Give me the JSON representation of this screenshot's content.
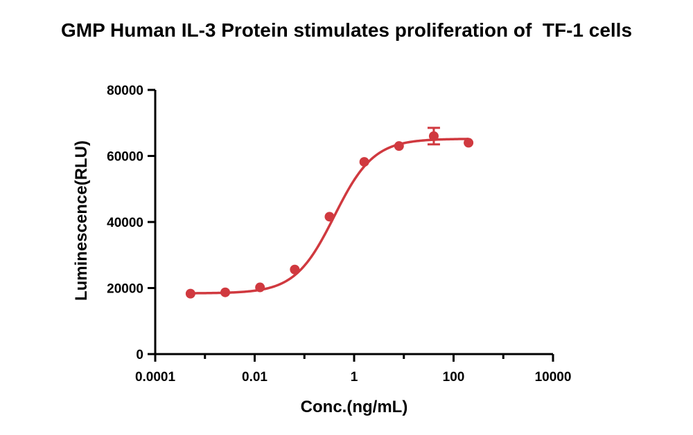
{
  "chart_data": {
    "type": "scatter",
    "title": "GMP Human IL-3 Protein stimulates proliferation of  TF-1 cells",
    "xlabel": "Conc.(ng/mL)",
    "ylabel": "Luminescence(RLU)",
    "x_scale": "log",
    "xlim": [
      0.0001,
      10000
    ],
    "ylim": [
      0,
      80000
    ],
    "x_ticks": [
      {
        "value": 0.0001,
        "label": "0.0001"
      },
      {
        "value": 0.01,
        "label": "0.01"
      },
      {
        "value": 1,
        "label": "1"
      },
      {
        "value": 100,
        "label": "100"
      },
      {
        "value": 10000,
        "label": "10000"
      }
    ],
    "y_ticks": [
      {
        "value": 0,
        "label": "0"
      },
      {
        "value": 20000,
        "label": "20000"
      },
      {
        "value": 40000,
        "label": "40000"
      },
      {
        "value": 60000,
        "label": "60000"
      },
      {
        "value": 80000,
        "label": "80000"
      }
    ],
    "series": [
      {
        "color": "#d0393f",
        "points": [
          {
            "x": 0.000512,
            "y": 18300
          },
          {
            "x": 0.00256,
            "y": 18700
          },
          {
            "x": 0.0128,
            "y": 20200
          },
          {
            "x": 0.064,
            "y": 25600
          },
          {
            "x": 0.32,
            "y": 41600
          },
          {
            "x": 1.6,
            "y": 58200
          },
          {
            "x": 8,
            "y": 63000
          },
          {
            "x": 40,
            "y": 66000,
            "error": 2500
          },
          {
            "x": 200,
            "y": 64000
          }
        ],
        "fit": {
          "model": "4PL",
          "bottom": 18400,
          "top": 65200,
          "ec50": 0.4,
          "hill": 1.1
        }
      }
    ],
    "grid": false,
    "legend": "none"
  }
}
